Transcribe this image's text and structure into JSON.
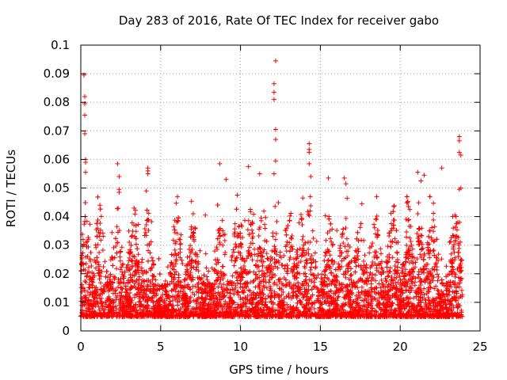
{
  "chart_data": {
    "type": "scatter",
    "title": "Day 283 of 2016, Rate Of TEC Index for receiver gabo",
    "xlabel": "GPS time / hours",
    "ylabel": "ROTI / TECUs",
    "xlim": [
      0,
      25
    ],
    "ylim": [
      0,
      0.1
    ],
    "xticks": [
      0,
      5,
      10,
      15,
      20,
      25
    ],
    "xtick_labels": [
      "0",
      "5",
      "10",
      "15",
      "20",
      "25"
    ],
    "yticks": [
      0,
      0.01,
      0.02,
      0.03,
      0.04,
      0.05,
      0.06,
      0.07,
      0.08,
      0.09,
      0.1
    ],
    "ytick_labels": [
      "0",
      "0.01",
      "0.02",
      "0.03",
      "0.04",
      "0.05",
      "0.06",
      "0.07",
      "0.08",
      "0.09",
      "0.1"
    ],
    "grid": true,
    "marker": "+",
    "marker_color": "#ff0000",
    "series": [
      {
        "name": "ROTI",
        "color": "#ff0000",
        "points": [
          [
            0.2,
            0.0895
          ],
          [
            0.25,
            0.082
          ],
          [
            0.25,
            0.0795
          ],
          [
            0.25,
            0.0755
          ],
          [
            0.25,
            0.069
          ],
          [
            0.3,
            0.06
          ],
          [
            0.3,
            0.059
          ],
          [
            0.3,
            0.0555
          ],
          [
            2.3,
            0.0585
          ],
          [
            2.4,
            0.054
          ],
          [
            2.4,
            0.0495
          ],
          [
            2.4,
            0.0485
          ],
          [
            4.2,
            0.057
          ],
          [
            4.2,
            0.056
          ],
          [
            4.2,
            0.055
          ],
          [
            4.1,
            0.049
          ],
          [
            8.7,
            0.0585
          ],
          [
            9.1,
            0.053
          ],
          [
            10.5,
            0.0575
          ],
          [
            11.2,
            0.055
          ],
          [
            12.2,
            0.0945
          ],
          [
            12.1,
            0.0865
          ],
          [
            12.1,
            0.0835
          ],
          [
            12.1,
            0.081
          ],
          [
            12.2,
            0.0705
          ],
          [
            12.2,
            0.067
          ],
          [
            12.2,
            0.0595
          ],
          [
            12.1,
            0.055
          ],
          [
            14.3,
            0.0655
          ],
          [
            14.3,
            0.0635
          ],
          [
            14.3,
            0.0625
          ],
          [
            14.3,
            0.0585
          ],
          [
            14.4,
            0.054
          ],
          [
            15.5,
            0.0535
          ],
          [
            16.5,
            0.0535
          ],
          [
            16.6,
            0.0515
          ],
          [
            21.1,
            0.0555
          ],
          [
            21.3,
            0.0525
          ],
          [
            21.5,
            0.0545
          ],
          [
            22.6,
            0.057
          ],
          [
            23.7,
            0.068
          ],
          [
            23.7,
            0.0665
          ],
          [
            23.7,
            0.0625
          ],
          [
            23.8,
            0.0615
          ],
          [
            23.8,
            0.05
          ],
          [
            23.7,
            0.0495
          ],
          [
            23.5,
            0.04
          ],
          [
            19.6,
            0.0435
          ],
          [
            20.6,
            0.0425
          ],
          [
            17.6,
            0.0445
          ],
          [
            9.8,
            0.0475
          ],
          [
            13.9,
            0.0465
          ],
          [
            6.1,
            0.0395
          ],
          [
            7.8,
            0.0405
          ]
        ],
        "dense_band": {
          "note": "thousands of overlapping + markers spanning the full time range",
          "x_range": [
            0,
            23.9
          ],
          "typical_min": 0.005,
          "typical_max": 0.03
        }
      }
    ]
  }
}
